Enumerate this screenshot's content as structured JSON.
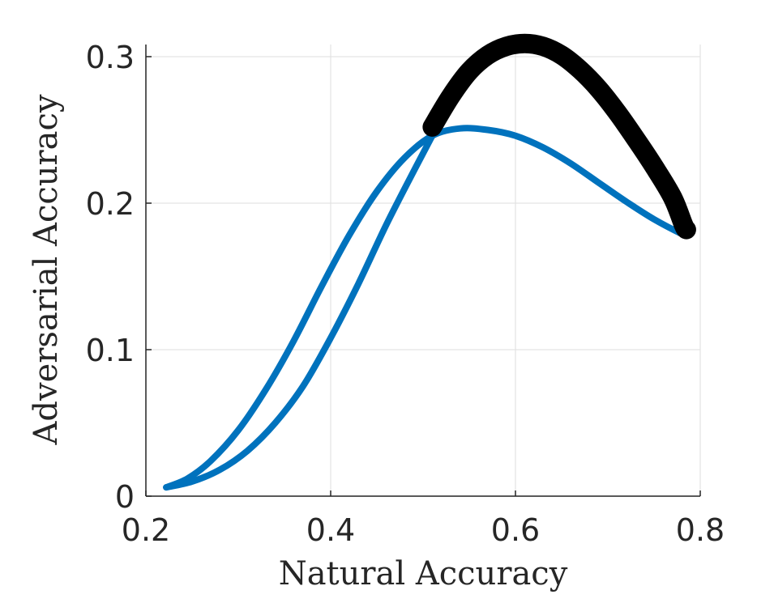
{
  "chart_data": {
    "type": "line",
    "title": "",
    "xlabel": "Natural Accuracy",
    "ylabel": "Adversarial Accuracy",
    "xlim": [
      0.2,
      0.8
    ],
    "ylim": [
      0,
      0.3
    ],
    "xticks": [
      0.2,
      0.4,
      0.6,
      0.8
    ],
    "yticks": [
      0,
      0.1,
      0.2,
      0.3
    ],
    "xtick_labels": [
      "0.2",
      "0.4",
      "0.6",
      "0.8"
    ],
    "ytick_labels": [
      "0",
      "0.1",
      "0.2",
      "0.3"
    ],
    "grid": true,
    "legend": "none",
    "series": [
      {
        "color": "#0072BD",
        "stroke": "thin",
        "points": [
          [
            0.222,
            0.006
          ],
          [
            0.245,
            0.012
          ],
          [
            0.27,
            0.024
          ],
          [
            0.3,
            0.045
          ],
          [
            0.33,
            0.073
          ],
          [
            0.36,
            0.106
          ],
          [
            0.39,
            0.143
          ],
          [
            0.42,
            0.178
          ],
          [
            0.45,
            0.208
          ],
          [
            0.48,
            0.231
          ],
          [
            0.51,
            0.246
          ],
          [
            0.54,
            0.251
          ],
          [
            0.57,
            0.25
          ],
          [
            0.6,
            0.246
          ],
          [
            0.63,
            0.238
          ],
          [
            0.66,
            0.227
          ],
          [
            0.69,
            0.214
          ],
          [
            0.72,
            0.201
          ],
          [
            0.75,
            0.189
          ],
          [
            0.78,
            0.179
          ],
          [
            0.782,
            0.179
          ]
        ]
      },
      {
        "color": "#0072BD",
        "stroke": "thin",
        "points": [
          [
            0.222,
            0.006
          ],
          [
            0.25,
            0.01
          ],
          [
            0.28,
            0.018
          ],
          [
            0.31,
            0.031
          ],
          [
            0.34,
            0.05
          ],
          [
            0.37,
            0.075
          ],
          [
            0.4,
            0.108
          ],
          [
            0.43,
            0.145
          ],
          [
            0.46,
            0.185
          ],
          [
            0.49,
            0.222
          ],
          [
            0.51,
            0.246
          ]
        ]
      },
      {
        "color": "#000000",
        "stroke": "thick",
        "points": [
          [
            0.51,
            0.252
          ],
          [
            0.53,
            0.273
          ],
          [
            0.55,
            0.29
          ],
          [
            0.57,
            0.301
          ],
          [
            0.59,
            0.307
          ],
          [
            0.61,
            0.309
          ],
          [
            0.63,
            0.307
          ],
          [
            0.65,
            0.301
          ],
          [
            0.67,
            0.291
          ],
          [
            0.69,
            0.278
          ],
          [
            0.71,
            0.262
          ],
          [
            0.73,
            0.244
          ],
          [
            0.75,
            0.225
          ],
          [
            0.77,
            0.204
          ],
          [
            0.782,
            0.185
          ],
          [
            0.785,
            0.182
          ]
        ]
      }
    ]
  }
}
